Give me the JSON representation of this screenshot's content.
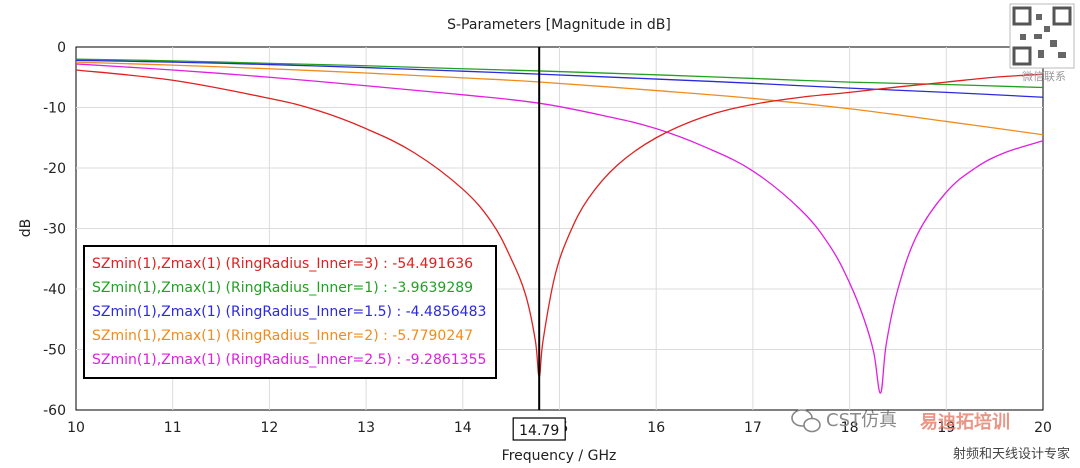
{
  "chart_data": {
    "type": "line",
    "title": "S-Parameters [Magnitude in dB]",
    "xlabel": "Frequency / GHz",
    "ylabel": "dB",
    "xlim": [
      10,
      20
    ],
    "ylim": [
      -60,
      0
    ],
    "xticks": [
      "10",
      "11",
      "12",
      "13",
      "14",
      "15",
      "16",
      "17",
      "18",
      "19",
      "20"
    ],
    "yticks": [
      "0",
      "-10",
      "-20",
      "-30",
      "-40",
      "-50",
      "-60"
    ],
    "marker": {
      "x": 14.79,
      "label": "14.79"
    },
    "legend_position": "lower-left",
    "series": [
      {
        "name": "SZmin(1),Zmax(1) (RingRadius_Inner=3)",
        "value_at_marker": "-54.491636",
        "color": "#e02020",
        "x": [
          10,
          11,
          12,
          12.5,
          13,
          13.5,
          14,
          14.3,
          14.5,
          14.65,
          14.75,
          14.79,
          14.83,
          14.95,
          15.1,
          15.3,
          15.6,
          16,
          16.5,
          17,
          17.5,
          18,
          18.5,
          19,
          19.5,
          20
        ],
        "y": [
          -3.8,
          -5.5,
          -8.5,
          -10.5,
          -13.5,
          -17.5,
          -23.5,
          -29.0,
          -35.0,
          -41.0,
          -48.5,
          -54.5,
          -48.5,
          -38.0,
          -31.0,
          -25.0,
          -19.5,
          -15.0,
          -11.5,
          -9.5,
          -8.3,
          -7.5,
          -6.6,
          -5.8,
          -5.0,
          -4.5
        ]
      },
      {
        "name": "SZmin(1),Zmax(1) (RingRadius_Inner=1)",
        "value_at_marker": "-3.9639289",
        "color": "#22a022",
        "x": [
          10,
          11,
          12,
          13,
          14,
          14.79,
          16,
          17,
          18,
          19,
          20
        ],
        "y": [
          -2.0,
          -2.3,
          -2.7,
          -3.1,
          -3.6,
          -3.96,
          -4.6,
          -5.2,
          -5.8,
          -6.2,
          -6.7
        ]
      },
      {
        "name": "SZmin(1),Zmax(1) (RingRadius_Inner=1.5)",
        "value_at_marker": "-4.4856483",
        "color": "#2a2adf",
        "x": [
          10,
          11,
          12,
          13,
          14,
          14.79,
          16,
          17,
          18,
          19,
          20
        ],
        "y": [
          -2.2,
          -2.5,
          -2.9,
          -3.4,
          -4.0,
          -4.49,
          -5.3,
          -6.0,
          -6.8,
          -7.5,
          -8.3
        ]
      },
      {
        "name": "SZmin(1),Zmax(1) (RingRadius_Inner=2)",
        "value_at_marker": "-5.7790247",
        "color": "#f08c1c",
        "x": [
          10,
          11,
          12,
          13,
          14,
          14.79,
          16,
          17,
          18,
          19,
          20
        ],
        "y": [
          -2.5,
          -3.0,
          -3.6,
          -4.3,
          -5.1,
          -5.78,
          -7.2,
          -8.5,
          -10.2,
          -12.3,
          -14.5
        ]
      },
      {
        "name": "SZmin(1),Zmax(1) (RingRadius_Inner=2.5)",
        "value_at_marker": "-9.2861355",
        "color": "#e020e0",
        "x": [
          10,
          11,
          12,
          13,
          14,
          14.79,
          15.5,
          16,
          16.5,
          17,
          17.5,
          17.8,
          18.0,
          18.15,
          18.25,
          18.32,
          18.38,
          18.5,
          18.7,
          19,
          19.3,
          19.6,
          20
        ],
        "y": [
          -2.8,
          -3.8,
          -5.0,
          -6.4,
          -7.9,
          -9.29,
          -11.5,
          -13.5,
          -16.5,
          -20.5,
          -27.0,
          -33.0,
          -39.0,
          -45.0,
          -50.5,
          -57.2,
          -49.0,
          -40.0,
          -31.0,
          -24.0,
          -20.0,
          -17.5,
          -15.5
        ]
      }
    ]
  },
  "watermark": {
    "qr_caption": "微信联系",
    "brand": "CST仿真",
    "brand_tail": "易迪拓培训",
    "bottom": "射频和天线设计专家"
  }
}
